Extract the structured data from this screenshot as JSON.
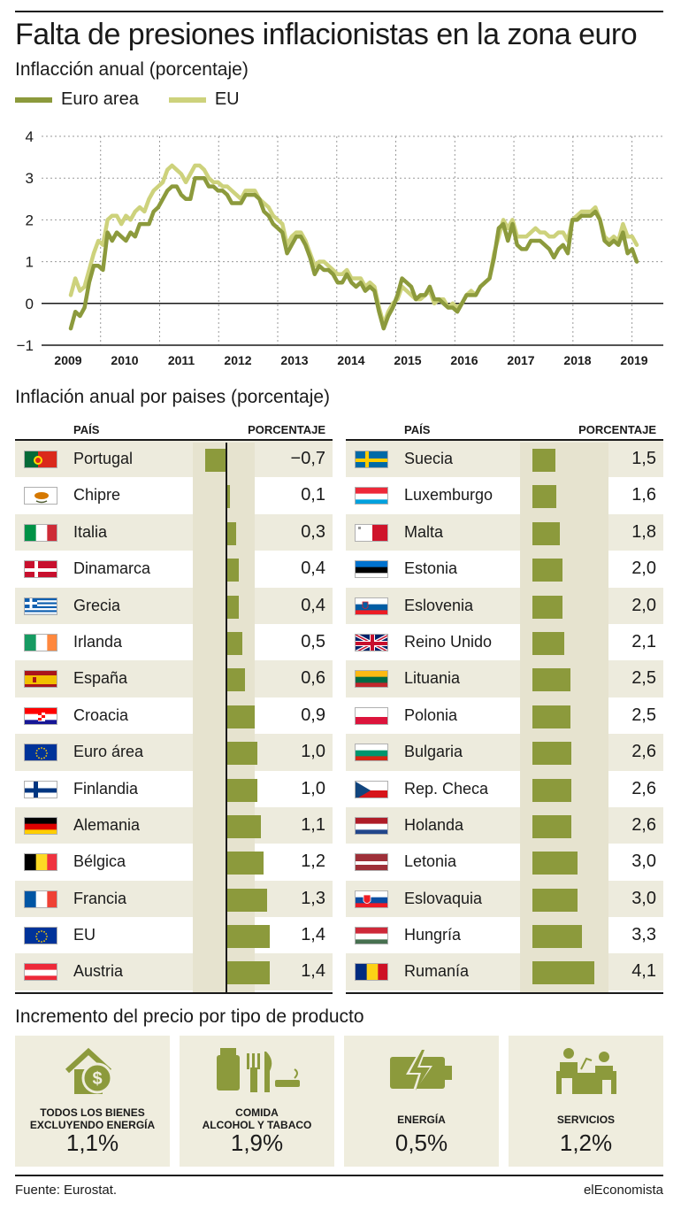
{
  "title": "Falta de presiones inflacionistas en la zona euro",
  "subtitle": "Inflacción anual (porcentaje)",
  "colors": {
    "euro_area": "#8c9a3c",
    "eu": "#cdd27c",
    "bar": "#8c9a3c",
    "shade": "#efedde"
  },
  "chart_data": [
    {
      "type": "line",
      "ylim": [
        -1,
        4
      ],
      "yticks": [
        -1,
        0,
        1,
        2,
        3,
        4
      ],
      "xticks": [
        "2009",
        "2010",
        "2011",
        "2012",
        "2013",
        "2014",
        "2015",
        "2016",
        "2017",
        "2018",
        "2019"
      ],
      "legend_position": "top-left",
      "series": [
        {
          "name": "Euro area",
          "x_start": 2009.0,
          "x_step": 0.0833,
          "values": [
            -0.6,
            -0.2,
            -0.3,
            -0.1,
            0.5,
            0.9,
            0.9,
            0.8,
            1.7,
            1.5,
            1.7,
            1.6,
            1.5,
            1.7,
            1.6,
            1.9,
            1.9,
            1.9,
            2.2,
            2.3,
            2.5,
            2.7,
            2.8,
            2.8,
            2.6,
            2.5,
            2.5,
            3.0,
            3.0,
            3.0,
            2.8,
            2.8,
            2.7,
            2.7,
            2.6,
            2.4,
            2.4,
            2.4,
            2.6,
            2.6,
            2.6,
            2.5,
            2.2,
            2.1,
            1.9,
            1.8,
            1.7,
            1.2,
            1.4,
            1.6,
            1.6,
            1.4,
            1.1,
            0.7,
            0.9,
            0.8,
            0.8,
            0.7,
            0.5,
            0.5,
            0.7,
            0.5,
            0.4,
            0.5,
            0.3,
            0.4,
            0.3,
            -0.2,
            -0.6,
            -0.3,
            -0.1,
            0.2,
            0.6,
            0.5,
            0.4,
            0.1,
            0.2,
            0.2,
            0.4,
            0.1,
            0.1,
            0.0,
            -0.1,
            -0.1,
            -0.2,
            0.0,
            0.2,
            0.2,
            0.2,
            0.4,
            0.5,
            0.6,
            1.1,
            1.8,
            1.9,
            1.5,
            1.9,
            1.4,
            1.3,
            1.3,
            1.5,
            1.5,
            1.5,
            1.4,
            1.3,
            1.1,
            1.3,
            1.4,
            1.2,
            2.0,
            2.0,
            2.1,
            2.1,
            2.1,
            2.2,
            2.0,
            1.5,
            1.4,
            1.5,
            1.4,
            1.7,
            1.2,
            1.3,
            1.0
          ]
        },
        {
          "name": "EU",
          "x_start": 2009.0,
          "x_step": 0.0833,
          "values": [
            0.2,
            0.6,
            0.3,
            0.4,
            0.8,
            1.2,
            1.5,
            1.4,
            2.0,
            2.1,
            2.1,
            1.9,
            2.1,
            2.0,
            2.2,
            2.3,
            2.2,
            2.5,
            2.7,
            2.8,
            2.9,
            3.2,
            3.3,
            3.2,
            3.1,
            2.9,
            3.1,
            3.3,
            3.3,
            3.2,
            3.0,
            2.9,
            2.9,
            2.8,
            2.8,
            2.7,
            2.6,
            2.5,
            2.7,
            2.7,
            2.7,
            2.5,
            2.4,
            2.3,
            2.1,
            2.0,
            1.9,
            1.4,
            1.6,
            1.7,
            1.7,
            1.5,
            1.2,
            0.9,
            1.0,
            1.0,
            0.9,
            0.8,
            0.7,
            0.7,
            0.8,
            0.6,
            0.6,
            0.6,
            0.4,
            0.5,
            0.4,
            -0.1,
            -0.5,
            -0.2,
            0.0,
            0.1,
            0.4,
            0.3,
            0.2,
            0.1,
            0.1,
            0.2,
            0.3,
            0.0,
            0.1,
            0.1,
            -0.1,
            0.0,
            -0.1,
            0.0,
            0.2,
            0.3,
            0.2,
            0.4,
            0.5,
            0.6,
            1.2,
            1.6,
            2.0,
            1.8,
            2.0,
            1.6,
            1.6,
            1.6,
            1.7,
            1.8,
            1.7,
            1.7,
            1.6,
            1.6,
            1.7,
            1.7,
            1.5,
            2.0,
            2.1,
            2.2,
            2.2,
            2.2,
            2.3,
            2.0,
            1.6,
            1.5,
            1.6,
            1.5,
            1.9,
            1.6,
            1.6,
            1.4
          ]
        }
      ]
    },
    {
      "type": "bar",
      "title": "Inflación anual por paises (porcentaje)",
      "headers": [
        "PAÍS",
        "PORCENTAJE"
      ],
      "orientation": "horizontal",
      "series": [
        {
          "name": "",
          "values": [
            -0.7,
            0.1,
            0.3,
            0.4,
            0.4,
            0.5,
            0.6,
            0.9,
            1.0,
            1.0,
            1.1,
            1.2,
            1.3,
            1.4,
            1.4,
            1.5,
            1.6,
            1.8,
            2.0,
            2.0,
            2.1,
            2.5,
            2.5,
            2.6,
            2.6,
            2.6,
            3.0,
            3.0,
            3.3,
            4.1
          ]
        }
      ],
      "categories": [
        "Portugal",
        "Chipre",
        "Italia",
        "Dinamarca",
        "Grecia",
        "Irlanda",
        "España",
        "Croacia",
        "Euro área",
        "Finlandia",
        "Alemania",
        "Bélgica",
        "Francia",
        "EU",
        "Austria",
        "Suecia",
        "Luxemburgo",
        "Malta",
        "Estonia",
        "Eslovenia",
        "Reino Unido",
        "Lituania",
        "Polonia",
        "Bulgaria",
        "Rep. Checa",
        "Holanda",
        "Letonia",
        "Eslovaquia",
        "Hungría",
        "Rumanía"
      ]
    }
  ],
  "table": {
    "header_country": "PAÍS",
    "header_value": "PORCENTAJE",
    "left": [
      {
        "name": "Portugal",
        "label": "−0,7",
        "value": -0.7,
        "flag": "portugal"
      },
      {
        "name": "Chipre",
        "label": "0,1",
        "value": 0.1,
        "flag": "cyprus"
      },
      {
        "name": "Italia",
        "label": "0,3",
        "value": 0.3,
        "flag": "italy"
      },
      {
        "name": "Dinamarca",
        "label": "0,4",
        "value": 0.4,
        "flag": "denmark"
      },
      {
        "name": "Grecia",
        "label": "0,4",
        "value": 0.4,
        "flag": "greece"
      },
      {
        "name": "Irlanda",
        "label": "0,5",
        "value": 0.5,
        "flag": "ireland"
      },
      {
        "name": "España",
        "label": "0,6",
        "value": 0.6,
        "flag": "spain"
      },
      {
        "name": "Croacia",
        "label": "0,9",
        "value": 0.9,
        "flag": "croatia"
      },
      {
        "name": "Euro área",
        "label": "1,0",
        "value": 1.0,
        "flag": "eu"
      },
      {
        "name": "Finlandia",
        "label": "1,0",
        "value": 1.0,
        "flag": "finland"
      },
      {
        "name": "Alemania",
        "label": "1,1",
        "value": 1.1,
        "flag": "germany"
      },
      {
        "name": "Bélgica",
        "label": "1,2",
        "value": 1.2,
        "flag": "belgium"
      },
      {
        "name": "Francia",
        "label": "1,3",
        "value": 1.3,
        "flag": "france"
      },
      {
        "name": "EU",
        "label": "1,4",
        "value": 1.4,
        "flag": "eu"
      },
      {
        "name": "Austria",
        "label": "1,4",
        "value": 1.4,
        "flag": "austria"
      }
    ],
    "right": [
      {
        "name": "Suecia",
        "label": "1,5",
        "value": 1.5,
        "flag": "sweden"
      },
      {
        "name": "Luxemburgo",
        "label": "1,6",
        "value": 1.6,
        "flag": "luxembourg"
      },
      {
        "name": "Malta",
        "label": "1,8",
        "value": 1.8,
        "flag": "malta"
      },
      {
        "name": "Estonia",
        "label": "2,0",
        "value": 2.0,
        "flag": "estonia"
      },
      {
        "name": "Eslovenia",
        "label": "2,0",
        "value": 2.0,
        "flag": "slovenia"
      },
      {
        "name": "Reino Unido",
        "label": "2,1",
        "value": 2.1,
        "flag": "uk"
      },
      {
        "name": "Lituania",
        "label": "2,5",
        "value": 2.5,
        "flag": "lithuania"
      },
      {
        "name": "Polonia",
        "label": "2,5",
        "value": 2.5,
        "flag": "poland"
      },
      {
        "name": "Bulgaria",
        "label": "2,6",
        "value": 2.6,
        "flag": "bulgaria"
      },
      {
        "name": "Rep. Checa",
        "label": "2,6",
        "value": 2.6,
        "flag": "czech"
      },
      {
        "name": "Holanda",
        "label": "2,6",
        "value": 2.6,
        "flag": "netherlands"
      },
      {
        "name": "Letonia",
        "label": "3,0",
        "value": 3.0,
        "flag": "latvia"
      },
      {
        "name": "Eslovaquia",
        "label": "3,0",
        "value": 3.0,
        "flag": "slovakia"
      },
      {
        "name": "Hungría",
        "label": "3,3",
        "value": 3.3,
        "flag": "hungary"
      },
      {
        "name": "Rumanía",
        "label": "4,1",
        "value": 4.1,
        "flag": "romania"
      }
    ]
  },
  "products": {
    "title": "Incremento del precio por tipo de producto",
    "items": [
      {
        "label_line1": "TODOS LOS BIENES",
        "label_line2": "EXCLUYENDO ENERGÍA",
        "value": "1,1%",
        "icon": "house-dollar-icon"
      },
      {
        "label_line1": "COMIDA",
        "label_line2": "ALCOHOL Y TABACO",
        "value": "1,9%",
        "icon": "food-drink-icon"
      },
      {
        "label_line1": "ENERGÍA",
        "label_line2": "",
        "value": "0,5%",
        "icon": "battery-bolt-icon"
      },
      {
        "label_line1": "SERVICIOS",
        "label_line2": "",
        "value": "1,2%",
        "icon": "office-service-icon"
      }
    ]
  },
  "footer": {
    "source": "Fuente: Eurostat.",
    "brand": "elEconomista"
  }
}
